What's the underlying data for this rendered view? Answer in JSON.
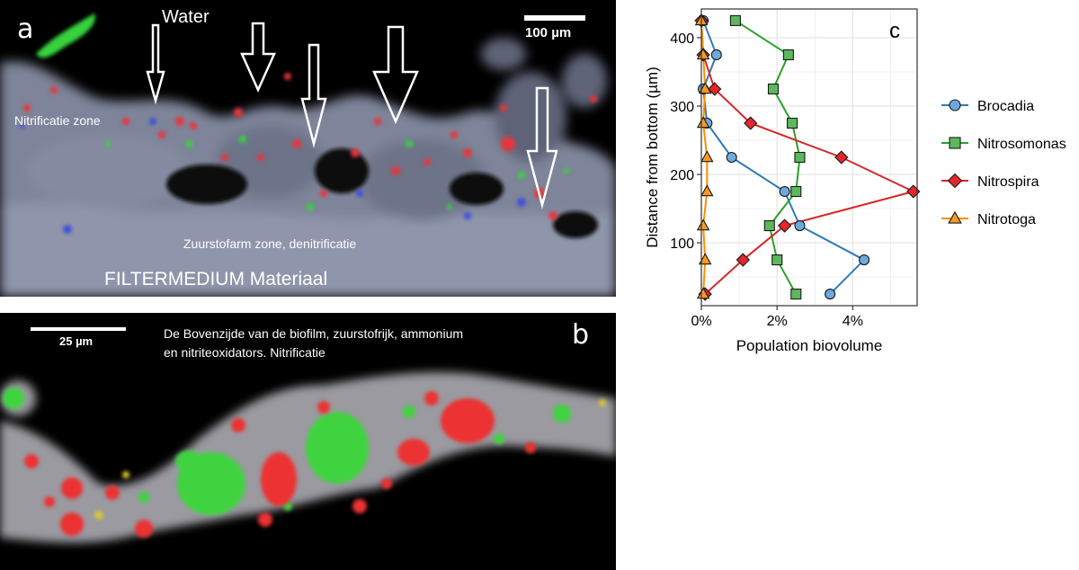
{
  "panel_a": {
    "letter": "a",
    "water_label": "Water",
    "scale_label": "100 µm",
    "nitrification_label": "Nitrificatie zone",
    "low_oxygen_label": "Zuurstofarm zone, denitrificatie",
    "filter_label": "FILTERMEDIUM Materiaal"
  },
  "panel_b": {
    "letter": "b",
    "scale_label": "25 µm",
    "description_line1": "De Bovenzijde van de biofilm, zuurstofrijk, ammonium",
    "description_line2": "en nitriteoxidators. Nitrificatie"
  },
  "colors": {
    "background": "#000000",
    "biofilm_grey": "#9aa0b4",
    "cells_red": "#e8343a",
    "cells_green": "#38d23c",
    "cells_blue": "#3c50d8"
  },
  "chart_data": {
    "type": "line",
    "letter": "c",
    "xlabel": "Population biovolume",
    "ylabel": "Distance from bottom (µm)",
    "xlim": [
      0,
      5.7
    ],
    "ylim": [
      8,
      442
    ],
    "xticks": [
      0,
      2,
      4
    ],
    "xtick_labels": [
      "0%",
      "2%",
      "4%"
    ],
    "yticks": [
      100,
      200,
      300,
      400
    ],
    "ytick_labels": [
      "100",
      "200",
      "300",
      "400"
    ],
    "grid": true,
    "legend_position": "right",
    "series": [
      {
        "name": "Brocadia",
        "marker": "circle",
        "color": "#2e7ab5",
        "fill": "#6fa8dc",
        "x": [
          3.4,
          4.3,
          2.6,
          2.2,
          0.8,
          0.15,
          0.05,
          0.4,
          0.05
        ],
        "y": [
          25,
          75,
          125,
          175,
          225,
          275,
          325,
          375,
          425
        ]
      },
      {
        "name": "Nitrosomonas",
        "marker": "square",
        "color": "#2ca02c",
        "fill": "#5cb85c",
        "x": [
          2.5,
          2.0,
          1.8,
          2.5,
          2.6,
          2.4,
          1.9,
          2.3,
          0.9
        ],
        "y": [
          25,
          75,
          125,
          175,
          225,
          275,
          325,
          375,
          425
        ]
      },
      {
        "name": "Nitrospira",
        "marker": "diamond",
        "color": "#d62728",
        "fill": "#e3262c",
        "x": [
          0.1,
          1.1,
          2.2,
          5.6,
          3.7,
          1.3,
          0.35,
          0.05,
          0.0
        ],
        "y": [
          25,
          75,
          125,
          175,
          225,
          275,
          325,
          375,
          425
        ]
      },
      {
        "name": "Nitrotoga",
        "marker": "triangle",
        "color": "#ff8c00",
        "fill": "#f59a23",
        "x": [
          0.05,
          0.1,
          0.05,
          0.15,
          0.15,
          0.05,
          0.1,
          0.05,
          0.0
        ],
        "y": [
          25,
          75,
          125,
          175,
          225,
          275,
          325,
          375,
          425
        ]
      }
    ]
  }
}
